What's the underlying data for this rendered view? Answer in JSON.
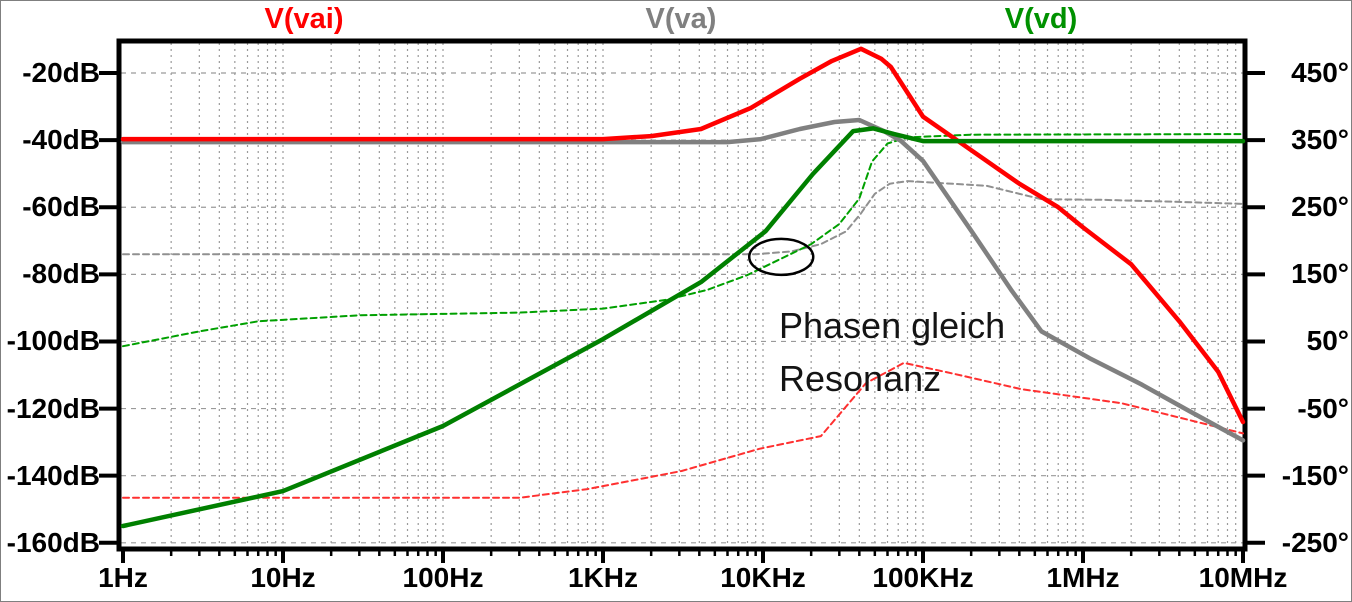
{
  "legend": {
    "items": [
      {
        "label": "V(vai)",
        "color": "#ff0000"
      },
      {
        "label": "V(va)",
        "color": "#808080"
      },
      {
        "label": "V(vd)",
        "color": "#009100"
      }
    ]
  },
  "annotation": {
    "line1": "Phasen gleich",
    "line2": "Resonanz"
  },
  "colors": {
    "background": "#ffffff",
    "frame": "#000000",
    "grid": "#9a9a9a",
    "red_trace": "#ff0000",
    "gray_trace": "#808080",
    "green_trace": "#008000",
    "annotation_ink": "#141414"
  },
  "chart_data": {
    "type": "line",
    "title": "",
    "xlabel": "",
    "ylabel_left": "dB",
    "ylabel_right": "degrees",
    "grid": true,
    "legend_position": "top",
    "x_axis": {
      "scale": "log",
      "min": 1,
      "max": 10000000,
      "tick_values": [
        1,
        10,
        100,
        1000,
        10000,
        100000,
        1000000,
        10000000
      ],
      "tick_labels": [
        "1Hz",
        "10Hz",
        "100Hz",
        "1KHz",
        "10KHz",
        "100KHz",
        "1MHz",
        "10MHz"
      ]
    },
    "y_left_axis": {
      "unit": "dB",
      "range_top": -10,
      "range_bottom": -162,
      "tick_values": [
        -20,
        -40,
        -60,
        -80,
        -100,
        -120,
        -140,
        -160
      ],
      "tick_labels": [
        "-20dB",
        "-40dB",
        "-60dB",
        "-80dB",
        "-100dB",
        "-120dB",
        "-140dB",
        "-160dB"
      ]
    },
    "y_right_axis": {
      "unit": "deg",
      "range_top": 480,
      "range_bottom": -268,
      "tick_values": [
        450,
        350,
        250,
        150,
        50,
        -50,
        -150,
        -250
      ],
      "tick_labels": [
        "450°",
        "350°",
        "250°",
        "150°",
        "50°",
        "-50°",
        "-150°",
        "-250°"
      ]
    },
    "series": [
      {
        "name": "V(vai) magnitude",
        "color": "#ff0000",
        "style": "solid",
        "axis": "left",
        "points": [
          [
            1,
            -39.7
          ],
          [
            1000,
            -39.7
          ],
          [
            2000,
            -38.8
          ],
          [
            4100,
            -36.7
          ],
          [
            8400,
            -30.4
          ],
          [
            17000,
            -21.7
          ],
          [
            27000,
            -16.4
          ],
          [
            41000,
            -12.8
          ],
          [
            55000,
            -15.8
          ],
          [
            63000,
            -18.2
          ],
          [
            100000,
            -33
          ],
          [
            200000,
            -43
          ],
          [
            400000,
            -53
          ],
          [
            700000,
            -60
          ],
          [
            1000000,
            -66
          ],
          [
            2000000,
            -77
          ],
          [
            4000000,
            -94
          ],
          [
            7000000,
            -109
          ],
          [
            10000000,
            -124
          ]
        ]
      },
      {
        "name": "V(va) magnitude",
        "color": "#808080",
        "style": "solid",
        "axis": "left",
        "points": [
          [
            1,
            -40.6
          ],
          [
            6000,
            -40.6
          ],
          [
            9700,
            -39.7
          ],
          [
            17000,
            -36.7
          ],
          [
            28000,
            -34.6
          ],
          [
            40000,
            -34
          ],
          [
            57000,
            -37.3
          ],
          [
            73000,
            -40.3
          ],
          [
            100000,
            -46.2
          ],
          [
            200000,
            -67
          ],
          [
            360000,
            -85
          ],
          [
            550000,
            -97
          ],
          [
            1100000,
            -105
          ],
          [
            2300000,
            -112.7
          ],
          [
            4600000,
            -120.7
          ],
          [
            10000000,
            -129.5
          ]
        ]
      },
      {
        "name": "V(vd) magnitude",
        "color": "#008000",
        "style": "solid",
        "axis": "left",
        "points": [
          [
            1,
            -155
          ],
          [
            10,
            -144.6
          ],
          [
            100,
            -125.2
          ],
          [
            1000,
            -99.3
          ],
          [
            4100,
            -82.3
          ],
          [
            10400,
            -67.1
          ],
          [
            20500,
            -50.1
          ],
          [
            36600,
            -37.3
          ],
          [
            49000,
            -36.5
          ],
          [
            66000,
            -38.2
          ],
          [
            100000,
            -40.3
          ],
          [
            10000000,
            -40.3
          ]
        ]
      },
      {
        "name": "V(vai) phase",
        "color": "#ff3030",
        "style": "dashed",
        "axis": "right",
        "points": [
          [
            1,
            -183
          ],
          [
            300,
            -183
          ],
          [
            800,
            -170
          ],
          [
            3100,
            -143
          ],
          [
            9500,
            -110
          ],
          [
            23000,
            -91
          ],
          [
            44000,
            -12
          ],
          [
            76000,
            18
          ],
          [
            155000,
            2
          ],
          [
            410000,
            -21
          ],
          [
            1740000,
            -42
          ],
          [
            10000000,
            -87
          ]
        ]
      },
      {
        "name": "V(va) phase",
        "color": "#909090",
        "style": "dashed",
        "axis": "right",
        "points": [
          [
            1,
            180
          ],
          [
            9000,
            180
          ],
          [
            15000,
            184
          ],
          [
            23000,
            195
          ],
          [
            33000,
            214
          ],
          [
            41000,
            241
          ],
          [
            50000,
            270
          ],
          [
            62000,
            285
          ],
          [
            80000,
            289
          ],
          [
            130000,
            286
          ],
          [
            250000,
            282
          ],
          [
            550000,
            262
          ],
          [
            1300000,
            261
          ],
          [
            4000000,
            258
          ],
          [
            10000000,
            255
          ]
        ]
      },
      {
        "name": "V(vd) phase",
        "color": "#00a000",
        "style": "dashed",
        "axis": "right",
        "points": [
          [
            1,
            43
          ],
          [
            3,
            65
          ],
          [
            7,
            80
          ],
          [
            30,
            89
          ],
          [
            300,
            93
          ],
          [
            1000,
            99
          ],
          [
            2500,
            112
          ],
          [
            4500,
            127
          ],
          [
            8000,
            149
          ],
          [
            13400,
            175
          ],
          [
            20000,
            195
          ],
          [
            30000,
            225
          ],
          [
            40000,
            263
          ],
          [
            48000,
            318
          ],
          [
            60000,
            345
          ],
          [
            80000,
            354
          ],
          [
            200000,
            358
          ],
          [
            10000000,
            359
          ]
        ]
      }
    ],
    "annotations": [
      {
        "text": "Phasen gleich Resonanz",
        "ellipse_at": {
          "freq_hz": 13000,
          "deg": 176
        }
      }
    ]
  }
}
